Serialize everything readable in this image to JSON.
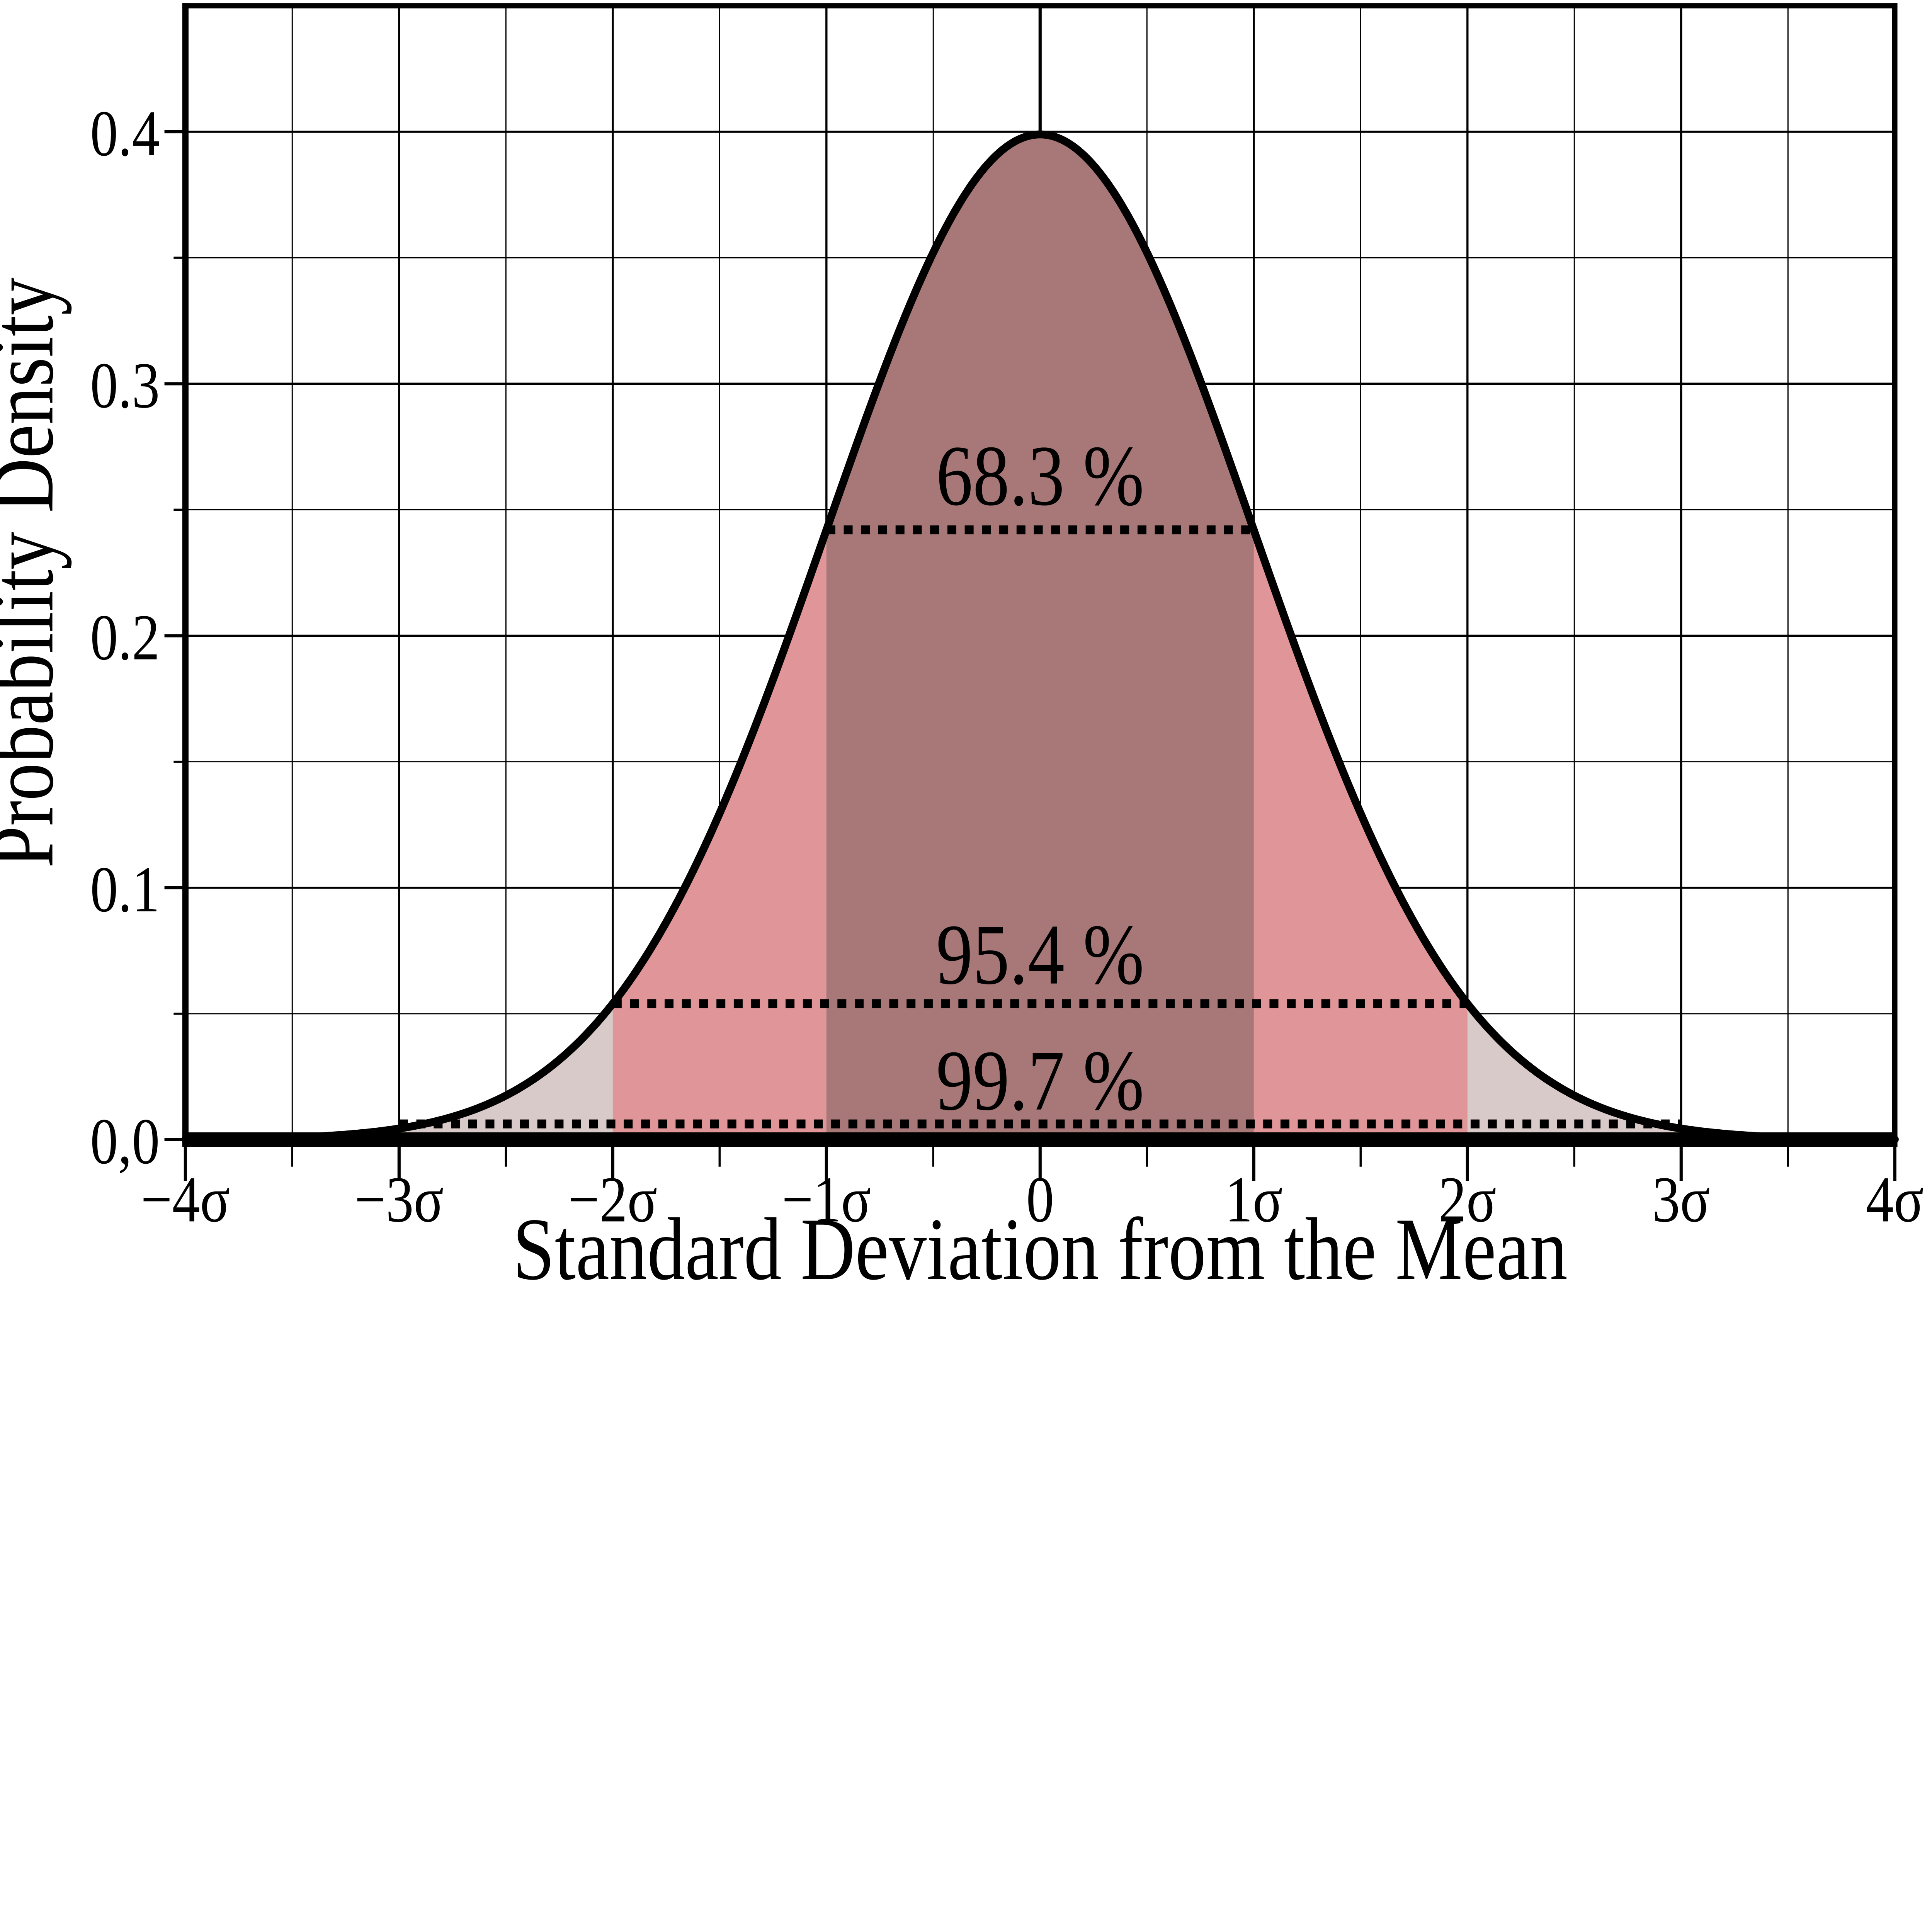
{
  "chart_data": {
    "type": "area",
    "title": "",
    "xlabel": "Standard Deviation from the Mean",
    "ylabel": "Probability Density",
    "xlim": [
      -4,
      4
    ],
    "ylim": [
      0,
      0.45
    ],
    "grid": "on",
    "legend": "none",
    "x_minor_step_sigma": 0.5,
    "y_minor_step": 0.05,
    "x_ticks": [
      {
        "value": -4,
        "label": "−4σ"
      },
      {
        "value": -3,
        "label": "−3σ"
      },
      {
        "value": -2,
        "label": "−2σ"
      },
      {
        "value": -1,
        "label": "−1σ"
      },
      {
        "value": 0,
        "label": "0"
      },
      {
        "value": 1,
        "label": "1σ"
      },
      {
        "value": 2,
        "label": "2σ"
      },
      {
        "value": 3,
        "label": "3σ"
      },
      {
        "value": 4,
        "label": "4σ"
      }
    ],
    "y_ticks": [
      {
        "value": 0.0,
        "label": "0,0"
      },
      {
        "value": 0.1,
        "label": "0.1"
      },
      {
        "value": 0.2,
        "label": "0.2"
      },
      {
        "value": 0.3,
        "label": "0.3"
      },
      {
        "value": 0.4,
        "label": "0.4"
      }
    ],
    "curve": {
      "distribution": "standard_normal_pdf",
      "mean": 0,
      "sigma": 1,
      "peak_density": 0.3989,
      "color": "#000000"
    },
    "mean_line_x": 0,
    "bands": [
      {
        "name": "within-3-sigma",
        "sigma_range": [
          -3,
          3
        ],
        "coverage_label": "99.7 %",
        "coverage": 0.997,
        "fill": "#D8CAC8",
        "dotted_line_y": 0.0044,
        "label_baseline_y": 0.012
      },
      {
        "name": "within-2-sigma",
        "sigma_range": [
          -2,
          2
        ],
        "coverage_label": "95.4 %",
        "coverage": 0.954,
        "fill": "#E09598",
        "dotted_line_y": 0.054,
        "label_baseline_y": 0.062
      },
      {
        "name": "within-1-sigma",
        "sigma_range": [
          -1,
          1
        ],
        "coverage_label": "68.3 %",
        "coverage": 0.683,
        "fill": "#A87878",
        "dotted_line_y": 0.242,
        "label_baseline_y": 0.252
      }
    ],
    "colors": {
      "background": "#FFFFFF",
      "grid": "#000000",
      "frame": "#000000",
      "curve_stroke": "#000000",
      "dotted_line": "#000000",
      "text": "#000000"
    }
  }
}
